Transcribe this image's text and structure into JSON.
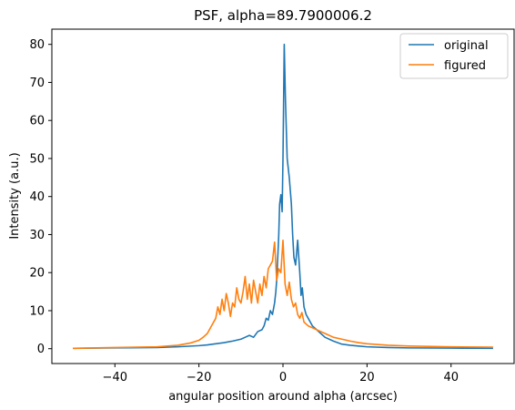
{
  "chart_data": {
    "type": "line",
    "title": "PSF, alpha=89.7900006.2",
    "xlabel": "angular position around alpha (arcsec)",
    "ylabel": "Intensity (a.u.)",
    "xlim": [
      -55,
      55
    ],
    "ylim": [
      -3.9,
      84
    ],
    "xticks": [
      -40,
      -20,
      0,
      20,
      40
    ],
    "yticks": [
      0,
      10,
      20,
      30,
      40,
      50,
      60,
      70,
      80
    ],
    "grid": false,
    "legend_position": "top-right",
    "series": [
      {
        "name": "original",
        "color": "#1f77b4",
        "x": [
          -50,
          -40,
          -30,
          -25,
          -20,
          -18,
          -16,
          -14,
          -12,
          -10,
          -9,
          -8,
          -7,
          -6,
          -5,
          -4.5,
          -4,
          -3.5,
          -3,
          -2.5,
          -2,
          -1.7,
          -1.5,
          -1.2,
          -1,
          -0.8,
          -0.5,
          -0.2,
          0,
          0.3,
          0.6,
          1,
          1.5,
          2,
          2.3,
          2.6,
          3,
          3.5,
          4,
          4.3,
          4.6,
          5,
          5.5,
          6,
          7,
          8,
          9,
          10,
          12,
          14,
          16,
          18,
          20,
          25,
          30,
          40,
          50
        ],
        "y": [
          0.1,
          0.2,
          0.3,
          0.5,
          0.8,
          1.0,
          1.3,
          1.6,
          2.0,
          2.5,
          3.0,
          3.5,
          3.0,
          4.5,
          5.0,
          6.0,
          8.0,
          7.5,
          10.0,
          9.0,
          12.0,
          15.0,
          18.0,
          25.0,
          30.0,
          38.0,
          40.5,
          36.0,
          50.0,
          80.0,
          65.0,
          50.0,
          45.0,
          38.0,
          30.0,
          24.0,
          22.0,
          28.5,
          20.0,
          14.0,
          16.0,
          11.0,
          9.0,
          8.0,
          6.0,
          5.0,
          4.0,
          3.0,
          2.0,
          1.2,
          0.9,
          0.7,
          0.5,
          0.3,
          0.2,
          0.15,
          0.1
        ]
      },
      {
        "name": "figured",
        "color": "#ff7f0e",
        "x": [
          -50,
          -40,
          -30,
          -25,
          -22,
          -20,
          -19,
          -18,
          -17,
          -16,
          -15.5,
          -15,
          -14.5,
          -14,
          -13.5,
          -13,
          -12.5,
          -12,
          -11.5,
          -11,
          -10.5,
          -10,
          -9.5,
          -9,
          -8.5,
          -8,
          -7.5,
          -7,
          -6.5,
          -6,
          -5.5,
          -5,
          -4.5,
          -4,
          -3.5,
          -3,
          -2.5,
          -2,
          -1.5,
          -1,
          -0.5,
          0,
          0.5,
          1,
          1.5,
          2,
          2.5,
          3,
          3.5,
          4,
          4.5,
          5,
          6,
          7,
          8,
          9,
          10,
          12,
          14,
          16,
          18,
          20,
          25,
          30,
          40,
          50
        ],
        "y": [
          0.1,
          0.3,
          0.5,
          0.9,
          1.5,
          2.2,
          3.0,
          4.0,
          6.0,
          8.0,
          11.0,
          9.0,
          13.0,
          10.0,
          14.5,
          12.0,
          8.5,
          12.0,
          11.0,
          16.0,
          13.0,
          12.0,
          15.0,
          19.0,
          13.0,
          17.0,
          12.0,
          18.0,
          15.0,
          12.0,
          17.0,
          14.0,
          19.0,
          16.0,
          21.0,
          22.0,
          23.0,
          28.0,
          18.0,
          21.0,
          20.0,
          28.5,
          17.0,
          14.0,
          17.5,
          13.0,
          11.0,
          12.0,
          9.0,
          8.0,
          9.5,
          7.0,
          6.0,
          5.5,
          5.0,
          4.5,
          4.0,
          3.0,
          2.5,
          2.0,
          1.6,
          1.3,
          0.9,
          0.7,
          0.5,
          0.4
        ]
      }
    ]
  }
}
